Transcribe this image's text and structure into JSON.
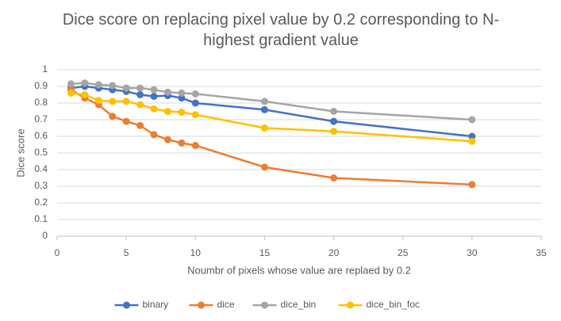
{
  "chart_data": {
    "type": "line",
    "title": "Dice score on replacing pixel value by 0.2 corresponding to N-highest gradient value",
    "x_label": "Noumbr of pixels whose value are replaed by 0.2",
    "y_label": "Dice score",
    "x": [
      1,
      2,
      3,
      4,
      5,
      6,
      7,
      8,
      9,
      10,
      15,
      20,
      30
    ],
    "series": [
      {
        "name": "binary",
        "color": "#4472c4",
        "values": [
          0.89,
          0.9,
          0.89,
          0.88,
          0.87,
          0.85,
          0.84,
          0.845,
          0.83,
          0.8,
          0.76,
          0.69,
          0.6
        ]
      },
      {
        "name": "dice",
        "color": "#ed7d31",
        "values": [
          0.88,
          0.83,
          0.79,
          0.72,
          0.69,
          0.665,
          0.61,
          0.58,
          0.56,
          0.545,
          0.415,
          0.35,
          0.31
        ]
      },
      {
        "name": "dice_bin",
        "color": "#a5a5a5",
        "values": [
          0.915,
          0.92,
          0.91,
          0.905,
          0.89,
          0.89,
          0.88,
          0.865,
          0.86,
          0.855,
          0.81,
          0.75,
          0.7
        ]
      },
      {
        "name": "dice_bin_foc",
        "color": "#ffc000",
        "values": [
          0.86,
          0.85,
          0.815,
          0.81,
          0.81,
          0.79,
          0.765,
          0.75,
          0.745,
          0.73,
          0.65,
          0.63,
          0.57
        ]
      }
    ],
    "xlim": [
      0,
      35
    ],
    "xticks": [
      0,
      5,
      10,
      15,
      20,
      25,
      30,
      35
    ],
    "ylim": [
      0,
      1
    ],
    "yticks": [
      0,
      0.1,
      0.2,
      0.3,
      0.4,
      0.5,
      0.6,
      0.7,
      0.8,
      0.9,
      1
    ],
    "grid": true,
    "legend": "bottom"
  }
}
